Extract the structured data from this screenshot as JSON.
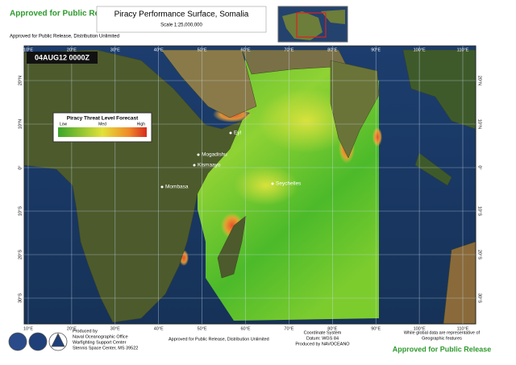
{
  "header": {
    "release_top": "Approved for Public Release",
    "title": "Piracy Performance Surface, Somalia",
    "scale": "Scale 1:25,000,000",
    "distribution": "Approved for Public Release, Distribution Unlimited"
  },
  "map": {
    "timestamp": "04AUG12 0000Z",
    "legend": {
      "title": "Piracy Threat Level Forecast",
      "low": "Low",
      "mid": "Med",
      "high": "High"
    },
    "places": [
      "Eyl",
      "Mogadishu",
      "Kismaayo",
      "Mombasa",
      "Seychelles"
    ],
    "lon_labels": [
      "10°E",
      "20°E",
      "30°E",
      "40°E",
      "50°E",
      "60°E",
      "70°E",
      "80°E",
      "90°E",
      "100°E",
      "110°E"
    ],
    "lat_labels": [
      "20°N",
      "10°N",
      "0°",
      "10°S",
      "20°S",
      "30°S"
    ]
  },
  "footer": {
    "produced": [
      "Produced by",
      "Naval Oceanographic Office",
      "Warfighting Support Center",
      "Stennis Space Center, MS 39522"
    ],
    "distribution": "Approved for Public Release, Distribution Unlimited",
    "coords": [
      "Coordinate System",
      "Datum: WGS 84",
      "Produced by NAVOCEANO"
    ],
    "note": [
      "While global data are representative of",
      "Geographic features"
    ],
    "release_bottom": "Approved for Public Release"
  }
}
